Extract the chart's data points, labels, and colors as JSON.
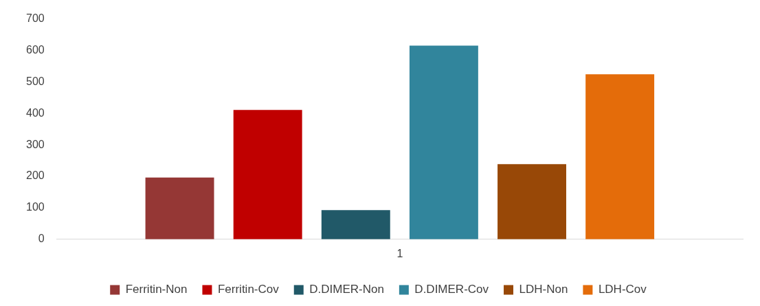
{
  "chart_data": {
    "type": "bar",
    "categories": [
      "1"
    ],
    "series": [
      {
        "name": "Ferritin-Non",
        "color": "#953735",
        "values": [
          196
        ]
      },
      {
        "name": "Ferritin-Cov",
        "color": "#c00000",
        "values": [
          411
        ]
      },
      {
        "name": "D.DIMER-Non",
        "color": "#215968",
        "values": [
          93
        ]
      },
      {
        "name": "D.DIMER-Cov",
        "color": "#31859c",
        "values": [
          615
        ]
      },
      {
        "name": "LDH-Non",
        "color": "#984807",
        "values": [
          239
        ]
      },
      {
        "name": "LDH-Cov",
        "color": "#e46c0a",
        "values": [
          524
        ]
      }
    ],
    "ylim": [
      0,
      700
    ],
    "yticks": [
      0,
      100,
      200,
      300,
      400,
      500,
      600,
      700
    ],
    "grid": false,
    "legend": "bottom"
  }
}
